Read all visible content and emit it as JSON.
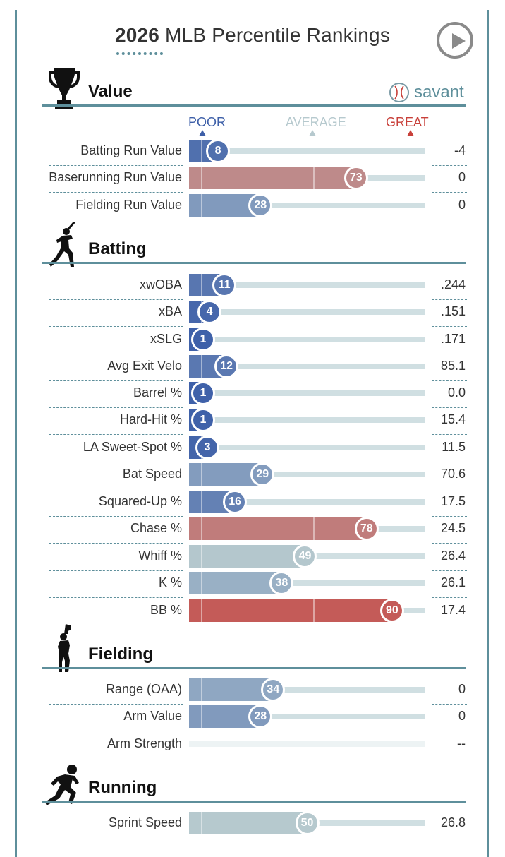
{
  "page": {
    "title_year": "2026",
    "title_rest": "MLB Percentile Rankings",
    "brand": "savant"
  },
  "scale": {
    "poor": "POOR",
    "average": "AVERAGE",
    "great": "GREAT",
    "colors": {
      "poor": "#3d5fa8",
      "average": "#b6c9ce",
      "great": "#c8403a"
    }
  },
  "sections": [
    {
      "name": "Value",
      "icon": "trophy-icon"
    },
    {
      "name": "Batting",
      "icon": "batter-icon"
    },
    {
      "name": "Fielding",
      "icon": "fielder-icon"
    },
    {
      "name": "Running",
      "icon": "runner-icon"
    }
  ],
  "chart_data": {
    "type": "bar",
    "title": "2026 MLB Percentile Rankings",
    "xlim": [
      0,
      100
    ],
    "series": [
      {
        "section": "Value",
        "metric": "Batting Run Value",
        "percentile": 8,
        "value": "-4"
      },
      {
        "section": "Value",
        "metric": "Baserunning Run Value",
        "percentile": 73,
        "value": "0"
      },
      {
        "section": "Value",
        "metric": "Fielding Run Value",
        "percentile": 28,
        "value": "0"
      },
      {
        "section": "Batting",
        "metric": "xwOBA",
        "percentile": 11,
        "value": ".244"
      },
      {
        "section": "Batting",
        "metric": "xBA",
        "percentile": 4,
        "value": ".151"
      },
      {
        "section": "Batting",
        "metric": "xSLG",
        "percentile": 1,
        "value": ".171"
      },
      {
        "section": "Batting",
        "metric": "Avg Exit Velo",
        "percentile": 12,
        "value": "85.1"
      },
      {
        "section": "Batting",
        "metric": "Barrel %",
        "percentile": 1,
        "value": "0.0"
      },
      {
        "section": "Batting",
        "metric": "Hard-Hit %",
        "percentile": 1,
        "value": "15.4"
      },
      {
        "section": "Batting",
        "metric": "LA Sweet-Spot %",
        "percentile": 3,
        "value": "11.5"
      },
      {
        "section": "Batting",
        "metric": "Bat Speed",
        "percentile": 29,
        "value": "70.6"
      },
      {
        "section": "Batting",
        "metric": "Squared-Up %",
        "percentile": 16,
        "value": "17.5"
      },
      {
        "section": "Batting",
        "metric": "Chase %",
        "percentile": 78,
        "value": "24.5"
      },
      {
        "section": "Batting",
        "metric": "Whiff %",
        "percentile": 49,
        "value": "26.4"
      },
      {
        "section": "Batting",
        "metric": "K %",
        "percentile": 38,
        "value": "26.1"
      },
      {
        "section": "Batting",
        "metric": "BB %",
        "percentile": 90,
        "value": "17.4"
      },
      {
        "section": "Fielding",
        "metric": "Range (OAA)",
        "percentile": 34,
        "value": "0"
      },
      {
        "section": "Fielding",
        "metric": "Arm Value",
        "percentile": 28,
        "value": "0"
      },
      {
        "section": "Fielding",
        "metric": "Arm Strength",
        "percentile": null,
        "value": "--"
      },
      {
        "section": "Running",
        "metric": "Sprint Speed",
        "percentile": 50,
        "value": "26.8"
      }
    ]
  }
}
